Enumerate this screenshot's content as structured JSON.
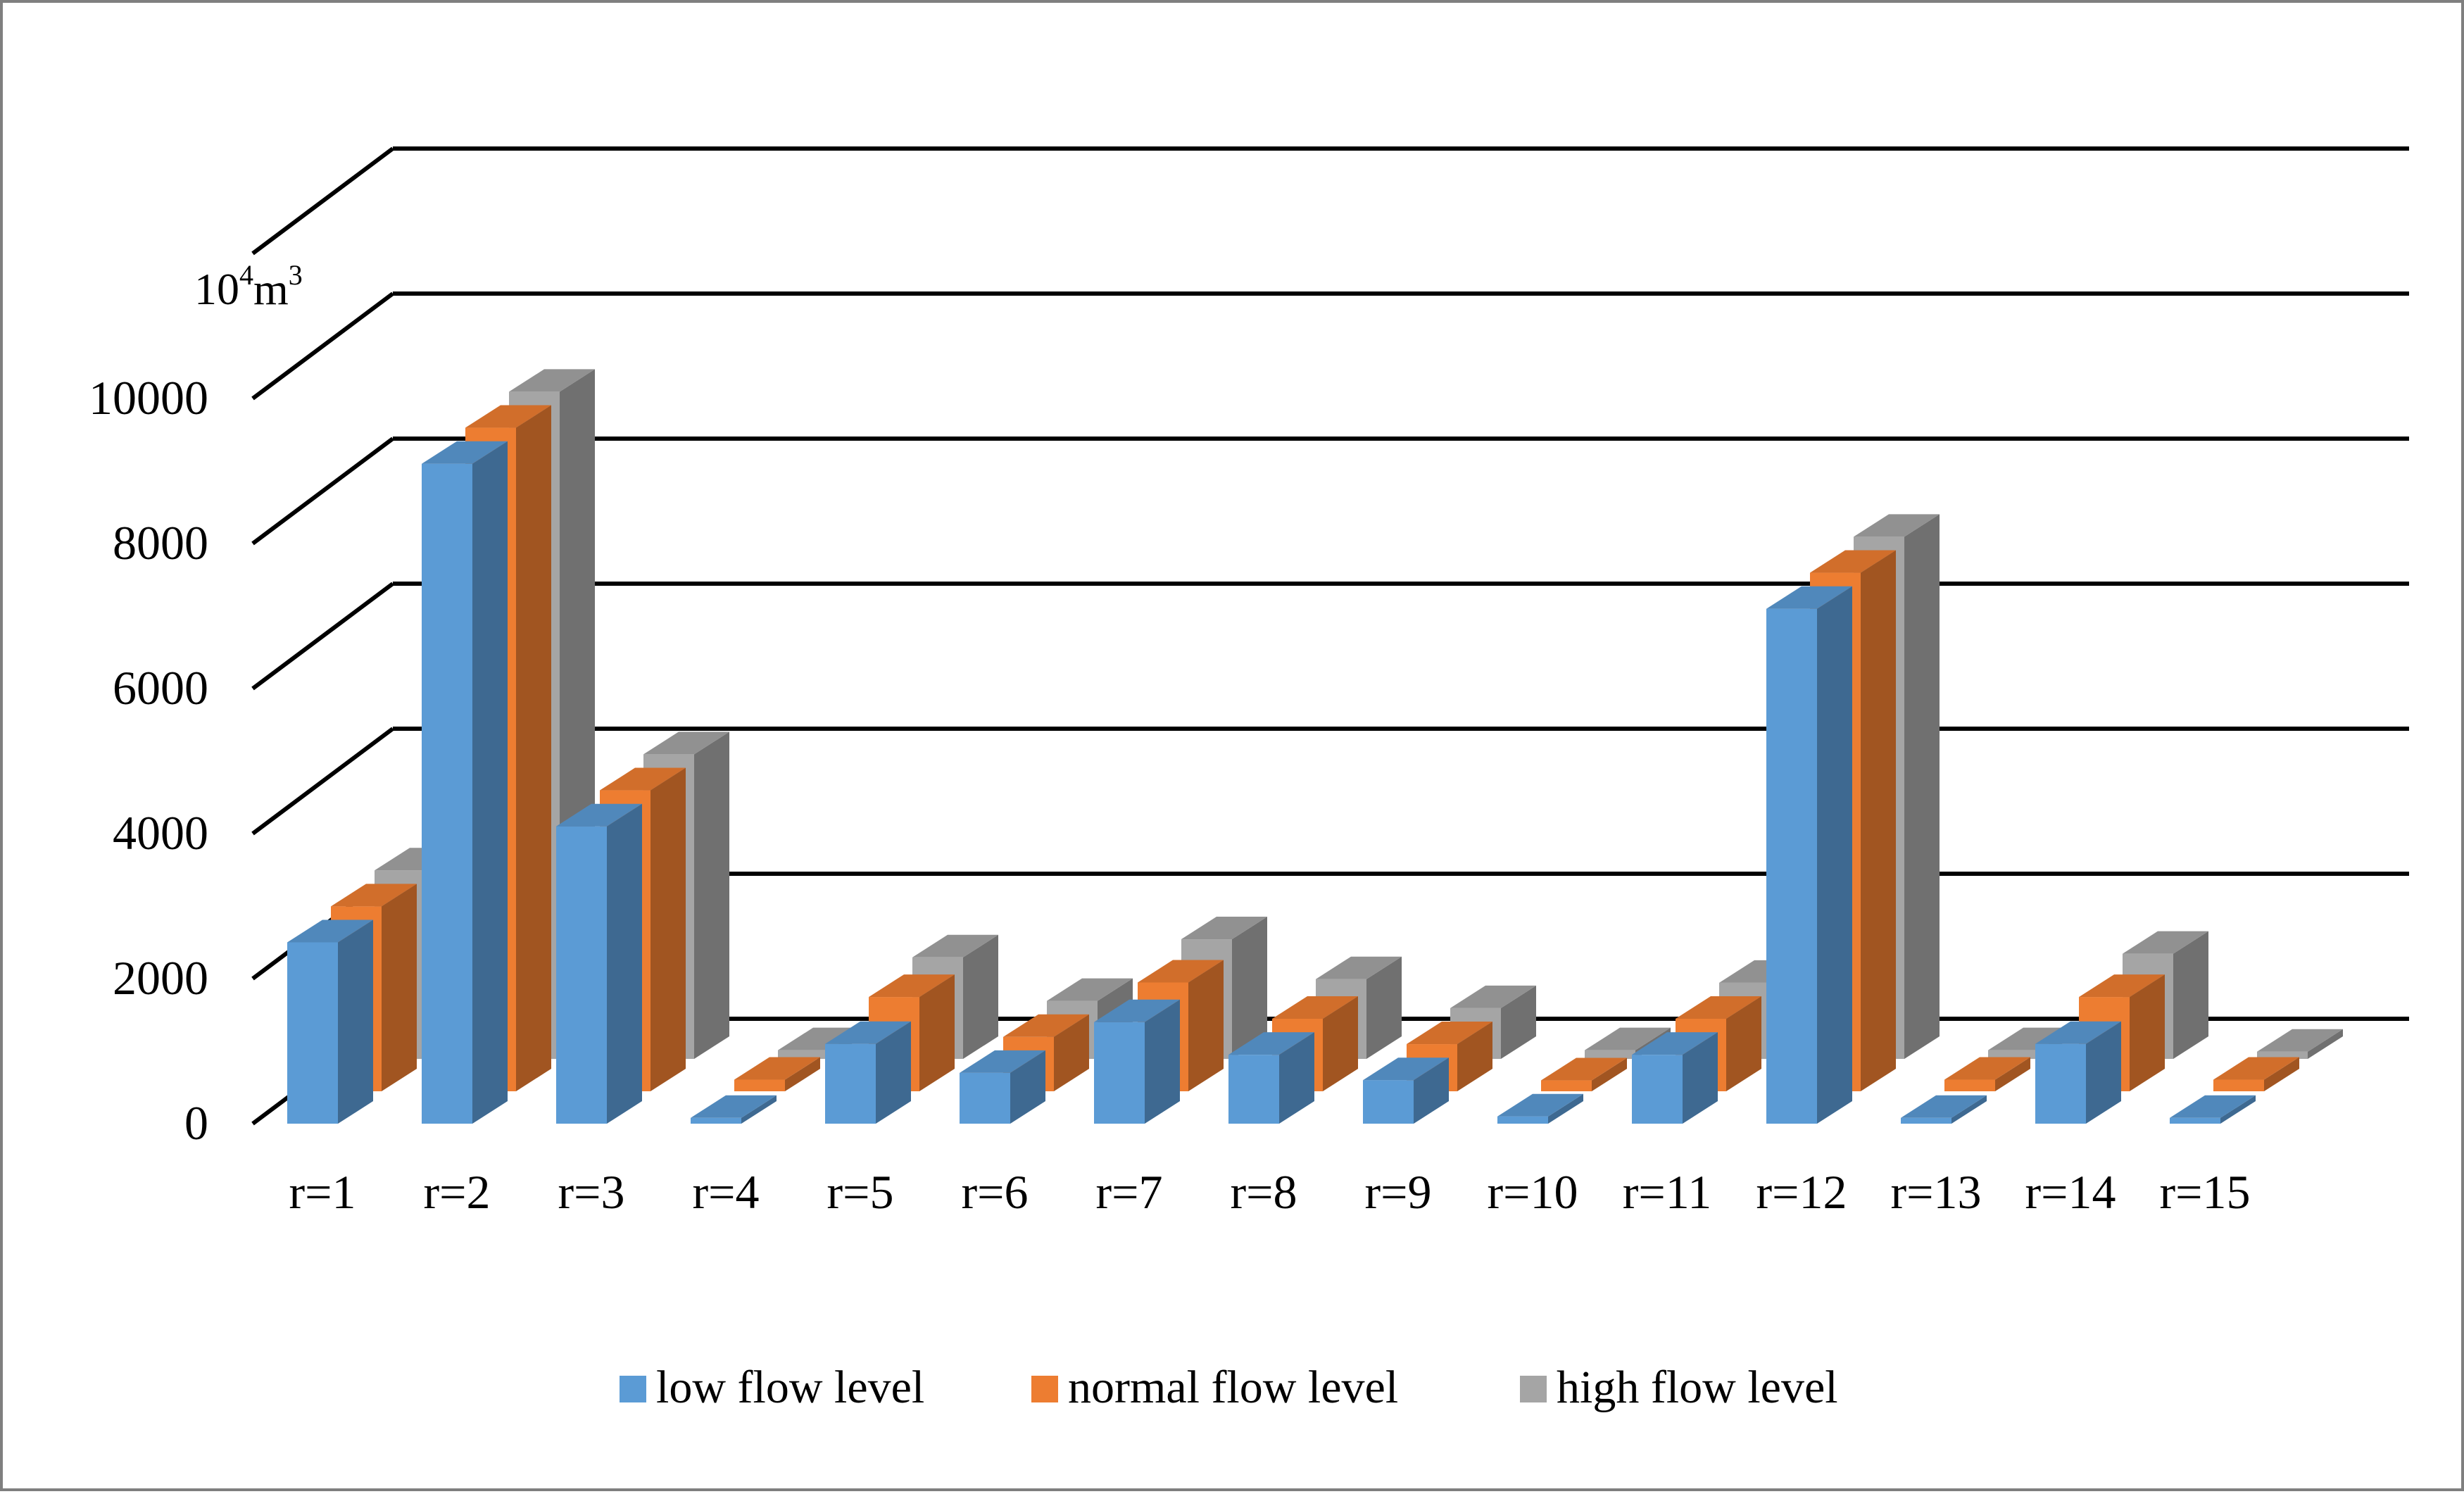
{
  "chart_data": {
    "type": "bar",
    "title": "",
    "unit_label": {
      "base": "10",
      "exponent": "4",
      "unit": "m",
      "unit_exponent": "3"
    },
    "xlabel": "",
    "ylabel": "",
    "ylim": [
      0,
      10000
    ],
    "y_ticks": [
      "0",
      "2000",
      "4000",
      "6000",
      "8000",
      "10000"
    ],
    "categories": [
      "r=1",
      "r=2",
      "r=3",
      "r=4",
      "r=5",
      "r=6",
      "r=7",
      "r=8",
      "r=9",
      "r=10",
      "r=11",
      "r=12",
      "r=13",
      "r=14",
      "r=15"
    ],
    "series": [
      {
        "name": "low flow level",
        "color": "#5b9bd5",
        "values": [
          2500,
          9100,
          4100,
          80,
          1100,
          700,
          1400,
          950,
          600,
          100,
          950,
          7100,
          80,
          1100,
          80
        ]
      },
      {
        "name": "normal flow level",
        "color": "#ed7d31",
        "values": [
          2550,
          9150,
          4150,
          160,
          1300,
          750,
          1500,
          1000,
          650,
          150,
          1000,
          7150,
          160,
          1300,
          160
        ]
      },
      {
        "name": "high flow level",
        "color": "#a5a5a5",
        "values": [
          2600,
          9200,
          4200,
          120,
          1400,
          800,
          1650,
          1100,
          700,
          120,
          1050,
          7200,
          120,
          1450,
          100
        ]
      }
    ],
    "grid": true,
    "legend_position": "bottom"
  }
}
